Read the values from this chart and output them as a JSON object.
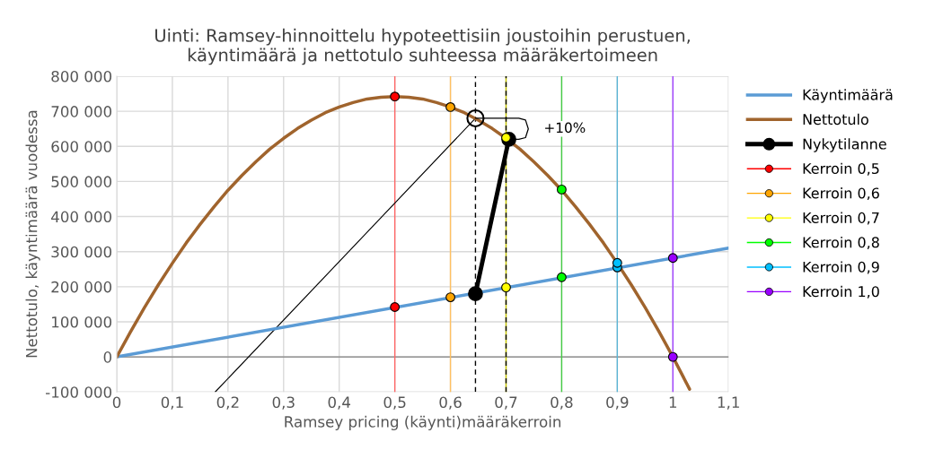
{
  "chart_data": {
    "type": "line",
    "title": "Uinti: Ramsey-hinnoittelu hypoteettisiin joustoihin perustuen,\nkäyntimäärä ja nettotulo suhteessa määräkertoimeen",
    "xlabel": "Ramsey pricing (käynti)määräkerroin",
    "ylabel": "Nettotulo, käyntimäärä vuodessa",
    "xlim": [
      0,
      1.1
    ],
    "ylim": [
      -100000,
      800000
    ],
    "xticks": [
      0,
      {
        "value": 0.1,
        "label": "0,1"
      },
      {
        "value": 0.2,
        "label": "0,2"
      },
      {
        "value": 0.3,
        "label": "0,3"
      },
      {
        "value": 0.4,
        "label": "0,4"
      },
      {
        "value": 0.5,
        "label": "0,5"
      },
      {
        "value": 0.6,
        "label": "0,6"
      },
      {
        "value": 0.7,
        "label": "0,7"
      },
      {
        "value": 0.8,
        "label": "0,8"
      },
      {
        "value": 0.9,
        "label": "0,9"
      },
      1,
      {
        "value": 1.1,
        "label": "1,1"
      }
    ],
    "yticks": [
      {
        "value": -100000,
        "label": "-100 000"
      },
      0,
      {
        "value": 100000,
        "label": "100 000"
      },
      {
        "value": 200000,
        "label": "200 000"
      },
      {
        "value": 300000,
        "label": "300 000"
      },
      {
        "value": 400000,
        "label": "400 000"
      },
      {
        "value": 500000,
        "label": "500 000"
      },
      {
        "value": 600000,
        "label": "600 000"
      },
      {
        "value": 700000,
        "label": "700 000"
      },
      {
        "value": 800000,
        "label": "800 000"
      }
    ],
    "grid": true,
    "legend": "right",
    "series": [
      {
        "color": "#000000",
        "x": [
          0.177,
          0.645
        ],
        "values": [
          -100000,
          680000
        ]
      },
      {
        "name": "Käyntimäärä",
        "color": "#5b9bd5",
        "x": [
          0,
          1.1
        ],
        "values": [
          0,
          310000
        ]
      },
      {
        "name": "Nettotulo",
        "color": "#a0642d",
        "x": [
          0,
          0.025,
          0.05,
          0.075,
          0.1,
          0.125,
          0.15,
          0.175,
          0.2,
          0.225,
          0.25,
          0.275,
          0.3,
          0.325,
          0.35,
          0.375,
          0.4,
          0.425,
          0.45,
          0.475,
          0.5,
          0.525,
          0.55,
          0.575,
          0.6,
          0.625,
          0.65,
          0.675,
          0.7,
          0.725,
          0.75,
          0.775,
          0.8,
          0.825,
          0.85,
          0.875,
          0.9,
          0.925,
          0.95,
          0.975,
          1.0,
          1.03
        ],
        "values": [
          0,
          72000,
          141000,
          206000,
          267000,
          325000,
          378000,
          428000,
          475000,
          517000,
          556000,
          592000,
          623000,
          651000,
          675000,
          696000,
          712000,
          725000,
          735000,
          740000,
          742000,
          740000,
          735000,
          725000,
          712000,
          696000,
          675000,
          651000,
          623000,
          592000,
          556000,
          517000,
          475000,
          428000,
          378000,
          325000,
          267000,
          206000,
          141000,
          72000,
          0,
          -92000
        ]
      },
      {
        "name": "Nykytilanne",
        "color": "#000000",
        "marker": "circle",
        "x": [
          0.645,
          0.705
        ],
        "values": [
          180000,
          620000
        ]
      },
      {
        "type": "scatter",
        "color": "#000000",
        "marker": "circle",
        "x": [
          0.645
        ],
        "values": [
          680000
        ]
      },
      {
        "name": "Kerroin 0,5",
        "type": "scatter",
        "color": "#ff0000",
        "marker": "circle",
        "x": [
          0.5,
          0.5
        ],
        "values": [
          142000,
          742000
        ]
      },
      {
        "name": "Kerroin 0,6",
        "type": "scatter",
        "color": "#ffa500",
        "marker": "circle",
        "x": [
          0.6,
          0.6
        ],
        "values": [
          170000,
          712000
        ]
      },
      {
        "name": "Kerroin 0,7",
        "type": "scatter",
        "color": "#ffff00",
        "marker": "circle",
        "x": [
          0.7,
          0.7
        ],
        "values": [
          198000,
          625000
        ]
      },
      {
        "name": "Kerroin 0,8",
        "type": "scatter",
        "color": "#00ff00",
        "marker": "circle",
        "x": [
          0.8,
          0.8
        ],
        "values": [
          227000,
          477000
        ]
      },
      {
        "name": "Kerroin 0,9",
        "type": "scatter",
        "color": "#00bfff",
        "marker": "circle",
        "x": [
          0.9,
          0.9
        ],
        "values": [
          255000,
          268000
        ]
      },
      {
        "name": "Kerroin 1,0",
        "type": "scatter",
        "color": "#9900ff",
        "marker": "circle",
        "x": [
          1.0,
          1.0
        ],
        "values": [
          282000,
          0
        ]
      }
    ],
    "ref_lines": [
      {
        "axis": "y",
        "value": 0,
        "color": "#808080"
      },
      {
        "axis": "x",
        "value": 0.5,
        "color": "#ff6666"
      },
      {
        "axis": "x",
        "value": 0.6,
        "color": "#ffc060"
      },
      {
        "axis": "x",
        "value": 0.7,
        "color": "#c8c800"
      },
      {
        "axis": "x",
        "value": 0.8,
        "color": "#44cc44"
      },
      {
        "axis": "x",
        "value": 0.9,
        "color": "#5bb5d5"
      },
      {
        "axis": "x",
        "value": 1.0,
        "color": "#a040ff"
      },
      {
        "axis": "x",
        "value": 0.645,
        "color": "#000000",
        "line_style": "dashed"
      },
      {
        "axis": "x",
        "value": 0.7,
        "color": "#000000",
        "line_style": "dashed"
      }
    ],
    "annotations": [
      {
        "text": "+10%",
        "x": 0.705,
        "y": 650000
      }
    ]
  }
}
